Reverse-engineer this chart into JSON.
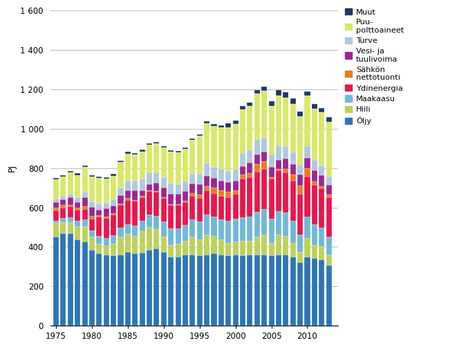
{
  "years": [
    1975,
    1976,
    1977,
    1978,
    1979,
    1980,
    1981,
    1982,
    1983,
    1984,
    1985,
    1986,
    1987,
    1988,
    1989,
    1990,
    1991,
    1992,
    1993,
    1994,
    1995,
    1996,
    1997,
    1998,
    1999,
    2000,
    2001,
    2002,
    2003,
    2004,
    2005,
    2006,
    2007,
    2008,
    2009,
    2010,
    2011,
    2012,
    2013
  ],
  "series": {
    "Öljy": [
      450,
      470,
      470,
      435,
      425,
      385,
      365,
      360,
      355,
      360,
      375,
      365,
      370,
      385,
      390,
      375,
      350,
      350,
      360,
      360,
      355,
      360,
      365,
      360,
      355,
      360,
      355,
      360,
      360,
      360,
      355,
      360,
      360,
      350,
      320,
      350,
      340,
      335,
      305
    ],
    "Hiili": [
      70,
      55,
      55,
      70,
      80,
      65,
      50,
      45,
      60,
      90,
      90,
      90,
      110,
      115,
      100,
      75,
      60,
      65,
      70,
      90,
      80,
      100,
      90,
      75,
      65,
      65,
      75,
      70,
      90,
      100,
      65,
      100,
      95,
      70,
      55,
      95,
      70,
      65,
      55
    ],
    "Maakaasu": [
      10,
      20,
      25,
      28,
      32,
      33,
      38,
      40,
      42,
      48,
      48,
      52,
      52,
      62,
      68,
      78,
      82,
      78,
      82,
      90,
      92,
      105,
      98,
      105,
      112,
      118,
      118,
      122,
      128,
      132,
      122,
      122,
      118,
      112,
      88,
      108,
      103,
      98,
      92
    ],
    "Ydinenergia": [
      55,
      55,
      55,
      55,
      55,
      60,
      100,
      100,
      105,
      115,
      125,
      125,
      120,
      120,
      120,
      120,
      120,
      120,
      115,
      120,
      120,
      120,
      120,
      120,
      120,
      125,
      200,
      200,
      205,
      205,
      205,
      205,
      205,
      205,
      205,
      205,
      200,
      200,
      200
    ],
    "Sähkön nettotuonti": [
      12,
      12,
      8,
      12,
      12,
      12,
      8,
      8,
      8,
      8,
      8,
      5,
      5,
      5,
      5,
      5,
      4,
      4,
      8,
      12,
      18,
      22,
      28,
      28,
      28,
      18,
      18,
      22,
      38,
      38,
      8,
      8,
      18,
      32,
      42,
      42,
      18,
      8,
      12
    ],
    "Vesi- ja tuulivoima": [
      28,
      28,
      38,
      28,
      48,
      48,
      28,
      42,
      38,
      42,
      42,
      48,
      28,
      32,
      42,
      48,
      52,
      52,
      48,
      48,
      52,
      52,
      48,
      48,
      48,
      48,
      42,
      52,
      48,
      48,
      52,
      48,
      52,
      52,
      58,
      52,
      58,
      58,
      52
    ],
    "Turve": [
      18,
      18,
      18,
      22,
      28,
      28,
      32,
      28,
      32,
      38,
      48,
      52,
      62,
      58,
      52,
      52,
      52,
      48,
      52,
      52,
      58,
      68,
      58,
      58,
      58,
      62,
      68,
      68,
      78,
      72,
      62,
      72,
      62,
      58,
      48,
      58,
      52,
      48,
      42
    ],
    "Puu-polttoaineet": [
      100,
      98,
      108,
      115,
      125,
      125,
      128,
      122,
      122,
      128,
      138,
      132,
      138,
      142,
      148,
      152,
      162,
      162,
      162,
      172,
      188,
      202,
      208,
      212,
      222,
      228,
      222,
      222,
      232,
      238,
      248,
      252,
      248,
      248,
      248,
      258,
      262,
      272,
      278
    ],
    "Muut": [
      8,
      8,
      8,
      8,
      8,
      8,
      8,
      8,
      8,
      8,
      8,
      8,
      8,
      8,
      8,
      8,
      8,
      8,
      8,
      8,
      8,
      8,
      8,
      12,
      18,
      18,
      18,
      18,
      18,
      22,
      22,
      28,
      28,
      28,
      22,
      22,
      22,
      22,
      22
    ]
  },
  "colors": {
    "Öljy": "#2e75b6",
    "Hiili": "#bcd25a",
    "Maakaasu": "#70b8d8",
    "Ydinenergia": "#e8174e",
    "Sähkön nettotuonti": "#e87b1e",
    "Vesi- ja tuulivoima": "#9b2791",
    "Turve": "#b0c8e0",
    "Puu-polttoaineet": "#d9e86a",
    "Muut": "#1f3864"
  },
  "ylabel": "PJ",
  "ylim": [
    0,
    1600
  ],
  "yticks": [
    0,
    200,
    400,
    600,
    800,
    1000,
    1200,
    1400,
    1600
  ],
  "ytick_labels": [
    "0",
    "200",
    "400",
    "600",
    "800",
    "1 000",
    "1 200",
    "1 400",
    "1 600"
  ],
  "xtick_years": [
    1975,
    1980,
    1985,
    1990,
    1995,
    2000,
    2005,
    2010
  ],
  "legend_order": [
    "Muut",
    "Puu-polttoaineet",
    "Turve",
    "Vesi- ja tuulivoima",
    "Sähkön nettotuonti",
    "Ydinenergia",
    "Maakaasu",
    "Hiili",
    "Öljy"
  ],
  "legend_labels": {
    "Muut": "Muut",
    "Puu-polttoaineet": "Puu-\npolttoaineet",
    "Turve": "Turve",
    "Vesi- ja tuulivoima": "Vesi- ja\ntuulivoima",
    "Sähkön nettotuonti": "Sähkön\nnettotuonti",
    "Ydinenergia": "Ydinenergia",
    "Maakaasu": "Maakaasu",
    "Hiili": "Hiili",
    "Öljy": "Öljy"
  },
  "figsize": [
    6.61,
    5.11
  ],
  "dpi": 100
}
